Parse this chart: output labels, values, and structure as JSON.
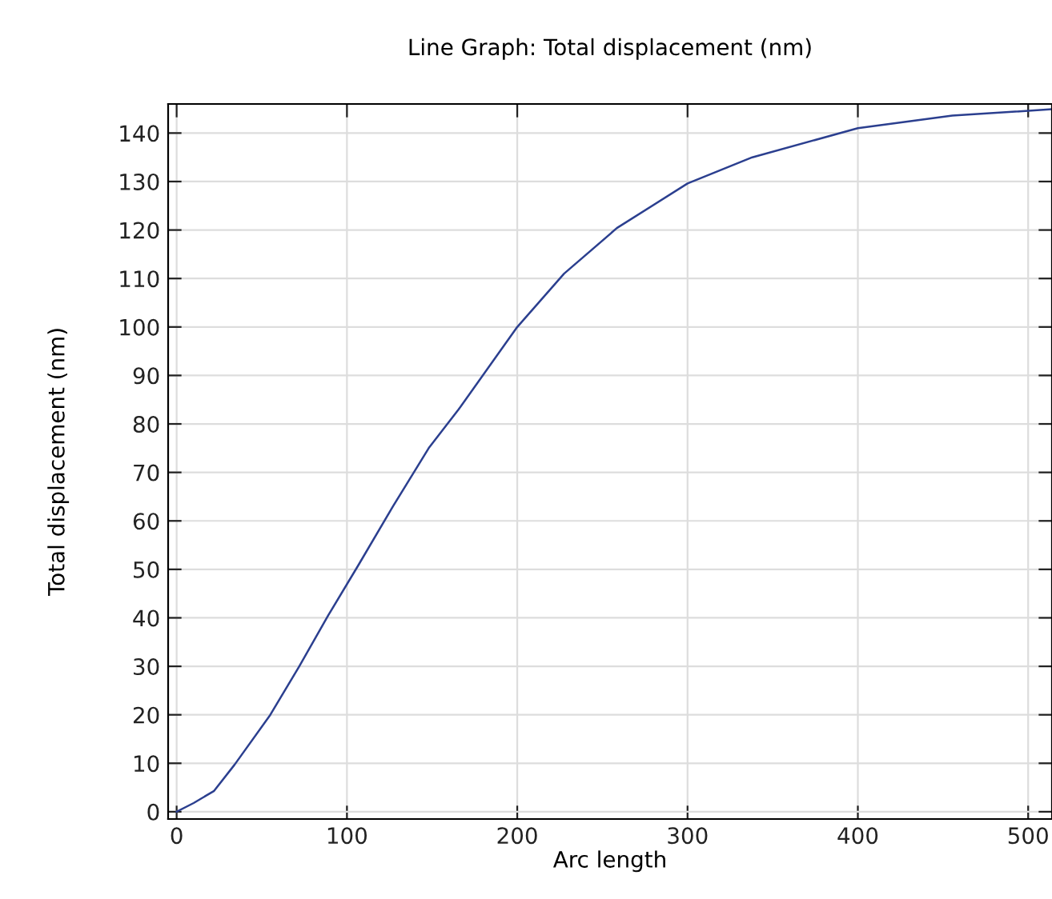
{
  "chart_data": {
    "type": "line",
    "title": "Line Graph: Total displacement (nm)",
    "xlabel": "Arc length",
    "ylabel": "Total displacement (nm)",
    "x": [
      0,
      10,
      22,
      34,
      55,
      72,
      89,
      106.6,
      127,
      148,
      165.6,
      200,
      227.5,
      258.5,
      300,
      338,
      400,
      455.5,
      513.6
    ],
    "series": [
      {
        "color": "#2b3f8f",
        "values": [
          0,
          1.8,
          4.3,
          9.7,
          20,
          30,
          40.5,
          50.8,
          63,
          75,
          83,
          100,
          111,
          120.4,
          129.6,
          135,
          141,
          143.6,
          144.9
        ]
      }
    ],
    "xlim": [
      -5,
      514
    ],
    "ylim": [
      -1.5,
      146
    ],
    "xticks": [
      0,
      100,
      200,
      300,
      400,
      500
    ],
    "yticks": [
      0,
      10,
      20,
      30,
      40,
      50,
      60,
      70,
      80,
      90,
      100,
      110,
      120,
      130,
      140
    ],
    "grid": true,
    "marker": "none",
    "line_style": "solid"
  }
}
